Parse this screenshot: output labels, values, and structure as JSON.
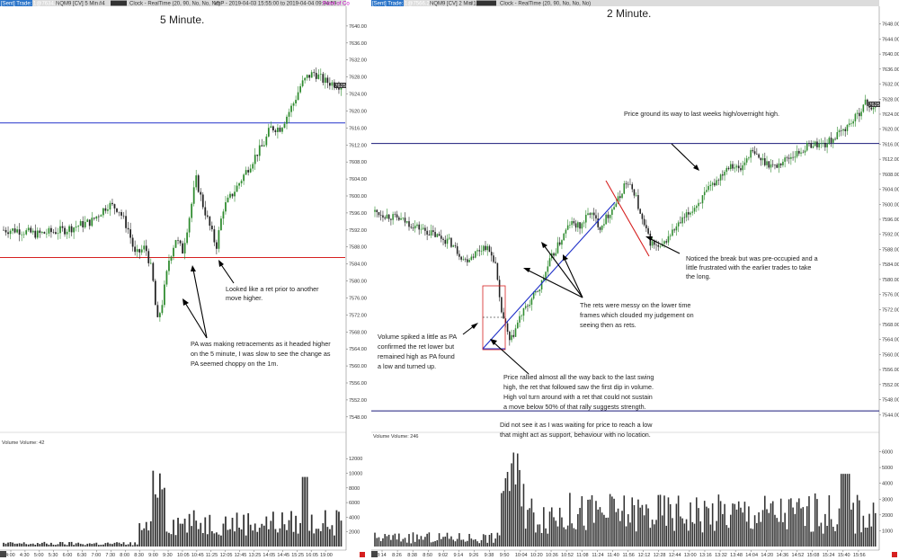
{
  "colors": {
    "bull": "#2e8b2e",
    "bear": "#222222",
    "volume": "#333333",
    "blue_line": "#1e2fa8",
    "red_line": "#d62020",
    "header_bg": "#dcdcdc",
    "price_tag": "#333333",
    "pink_text": "#c000c0"
  },
  "chart_data": [
    {
      "type": "candlestick",
      "title": "5 Minute.",
      "header": {
        "prefix": "[Sent] Trade: 1@7634.50",
        "symbol": "NQM9 [CV]  5 Min",
        "tag": "#4",
        "clock": "Clock - RealTime  (20, 90, No, No, No)",
        "range": "VbP  -  2019-04-03 15:55:00 to 2019-04-04 09:34:59",
        "extra": "Point of Co"
      },
      "last_price": "7625.75",
      "price_ticks": [
        "7640.00",
        "7636.00",
        "7632.00",
        "7628.00",
        "7624.00",
        "7620.00",
        "7616.00",
        "7612.00",
        "7608.00",
        "7604.00",
        "7600.00",
        "7596.00",
        "7592.00",
        "7588.00",
        "7584.00",
        "7580.00",
        "7576.00",
        "7572.00",
        "7568.00",
        "7564.00",
        "7560.00",
        "7556.00",
        "7552.00",
        "7548.00"
      ],
      "ylim": [
        7545,
        7644
      ],
      "horizontal_levels": [
        {
          "price": 7617.2,
          "color": "blue"
        },
        {
          "price": 7585.5,
          "color": "red"
        }
      ],
      "time_ticks": [
        "4:00",
        "4:30",
        "5:00",
        "5:30",
        "6:00",
        "6:30",
        "7:00",
        "7:30",
        "8:00",
        "8:30",
        "9:00",
        "9:30",
        "10:05",
        "10:45",
        "11:25",
        "12:05",
        "12:45",
        "13:25",
        "14:05",
        "14:45",
        "15:25",
        "16:05",
        "19:00"
      ],
      "volume_title": "Volume  Volume: 42",
      "volume_ticks": [
        "12000",
        "10000",
        "8000",
        "6000",
        "4000",
        "2000"
      ],
      "volume_max": 13500,
      "annotations": [
        {
          "id": "ret-prior",
          "lines": [
            "Looked like a ret prior to another",
            "move higher."
          ]
        },
        {
          "id": "pa-making-rets",
          "lines": [
            "PA was making retracements as it headed higher",
            "on the 5 minute, I was slow to see the change as",
            "PA seemed choppy on the 1m."
          ]
        }
      ]
    },
    {
      "type": "candlestick",
      "title": "2 Minute.",
      "header": {
        "prefix": "[Sent] Trade: 1@7566.25",
        "symbol": "NQM9 [CV]  2 Min",
        "tag": "#1",
        "clock": "Clock - RealTime  (20, 90, No, No, No)",
        "range": "",
        "extra": ""
      },
      "last_price": "7625.75",
      "price_ticks": [
        "7648.00",
        "7644.00",
        "7640.00",
        "7636.00",
        "7632.00",
        "7628.00",
        "7624.00",
        "7620.00",
        "7616.00",
        "7612.00",
        "7608.00",
        "7604.00",
        "7600.00",
        "7596.00",
        "7592.00",
        "7588.00",
        "7584.00",
        "7580.00",
        "7576.00",
        "7572.00",
        "7568.00",
        "7564.00",
        "7560.00",
        "7556.00",
        "7552.00",
        "7548.00",
        "7544.00"
      ],
      "ylim": [
        7540,
        7652
      ],
      "horizontal_levels": [
        {
          "price": 7616.2,
          "color": "navy"
        },
        {
          "price": 7545.0,
          "color": "navy"
        }
      ],
      "time_ticks": [
        "8:14",
        "8:26",
        "8:38",
        "8:50",
        "9:02",
        "9:14",
        "9:26",
        "9:38",
        "9:50",
        "10:04",
        "10:20",
        "10:36",
        "10:52",
        "11:08",
        "11:24",
        "11:40",
        "11:56",
        "12:12",
        "12:28",
        "12:44",
        "13:00",
        "13:16",
        "13:32",
        "13:48",
        "14:04",
        "14:20",
        "14:36",
        "14:52",
        "15:08",
        "15:24",
        "15:40",
        "15:56"
      ],
      "volume_title": "Volume  Volume: 246",
      "volume_ticks": [
        "6000",
        "5000",
        "4000",
        "3000",
        "2000",
        "1000"
      ],
      "volume_max": 6600,
      "annotations": [
        {
          "id": "price-ground",
          "lines": [
            "Price ground its way to last weeks high/overnight high."
          ]
        },
        {
          "id": "noticed-break",
          "lines": [
            "Noticed the break but was pre-occupied and a",
            "little frustrated with the earlier trades to take",
            "the long."
          ]
        },
        {
          "id": "rets-messy",
          "lines": [
            "The rets were messy on the lower time",
            "frames which clouded my judgement on",
            "seeing then as rets."
          ]
        },
        {
          "id": "volume-spiked",
          "lines": [
            "Volume spiked a little as PA",
            "confirmed the ret lower but",
            "remained high as PA found",
            "a low and turned up."
          ]
        },
        {
          "id": "price-rallied",
          "lines": [
            "Price rallied almost all the way back to the last swing",
            "high, the ret that followed saw the first dip in volume.",
            "High vol turn around with a ret that could not sustain",
            "a move below 50% of that rally suggests strength."
          ]
        },
        {
          "id": "did-not-see",
          "lines": [
            "Did not see it as I was waiting for price to reach a low",
            "that might act as support, behaviour with no location."
          ]
        }
      ]
    }
  ]
}
